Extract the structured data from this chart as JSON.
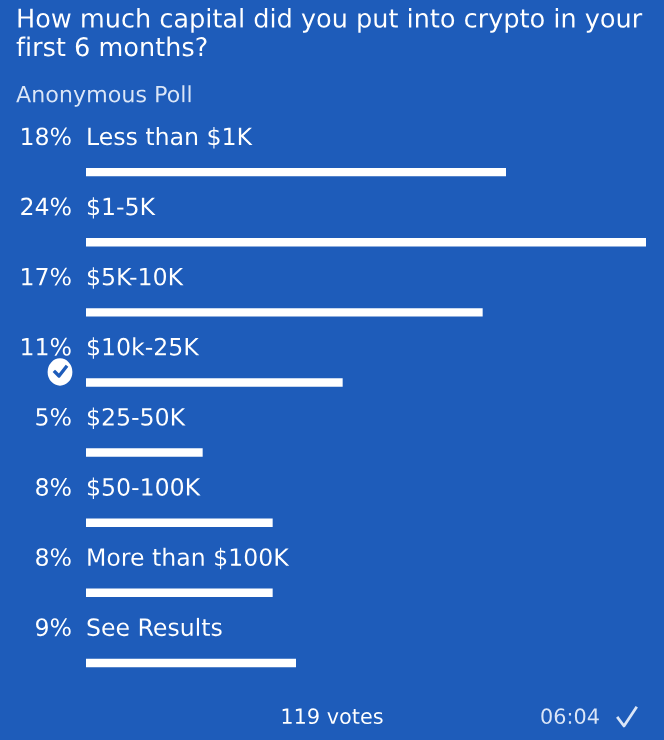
{
  "chart_data": {
    "type": "bar",
    "orientation": "horizontal",
    "title": "How much capital did you put into crypto in your first 6 months?",
    "subtitle": "Anonymous Poll",
    "categories": [
      "Less than $1K",
      "$1-5K",
      "$5K-10K",
      "$10k-25K",
      "$25-50K",
      "$50-100K",
      "More than $100K",
      "See Results"
    ],
    "values": [
      18,
      24,
      17,
      11,
      5,
      8,
      8,
      9
    ],
    "value_labels": [
      "18%",
      "24%",
      "17%",
      "11%",
      "5%",
      "8%",
      "8%",
      "9%"
    ],
    "color": "#ffffff",
    "annotations": [
      "119 votes",
      "06:04"
    ]
  }
}
